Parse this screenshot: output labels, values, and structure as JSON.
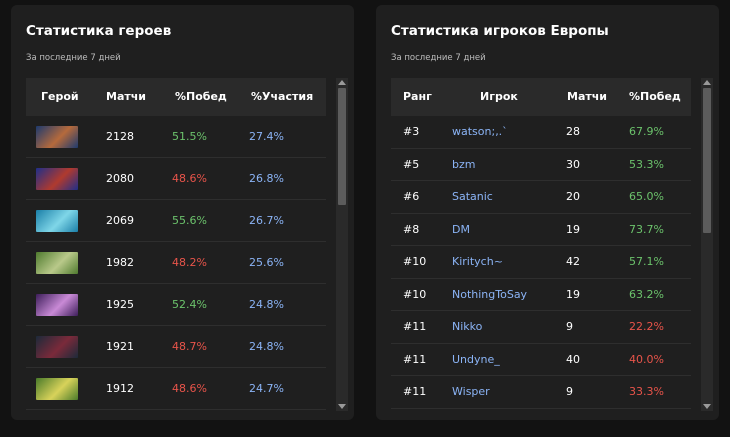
{
  "heroes_panel": {
    "title": "Статистика героев",
    "subtitle": "За последние 7 дней",
    "headers": [
      "Герой",
      "Матчи",
      "%Побед",
      "%Участия"
    ],
    "rows": [
      {
        "matches": "2128",
        "winrate": "51.5%",
        "winrate_status": "good",
        "participation": "27.4%",
        "portrait_colors": [
          "#1d3a6e",
          "#b56a3c"
        ]
      },
      {
        "matches": "2080",
        "winrate": "48.6%",
        "winrate_status": "bad",
        "participation": "26.8%",
        "portrait_colors": [
          "#1f2f8a",
          "#b03a2e"
        ]
      },
      {
        "matches": "2069",
        "winrate": "55.6%",
        "winrate_status": "good",
        "participation": "26.7%",
        "portrait_colors": [
          "#1a7fa8",
          "#7fd6e8"
        ]
      },
      {
        "matches": "1982",
        "winrate": "48.2%",
        "winrate_status": "bad",
        "participation": "25.6%",
        "portrait_colors": [
          "#4f7a2e",
          "#b9c98a"
        ]
      },
      {
        "matches": "1925",
        "winrate": "52.4%",
        "winrate_status": "good",
        "participation": "24.8%",
        "portrait_colors": [
          "#3d1e5a",
          "#c98ad6"
        ]
      },
      {
        "matches": "1921",
        "winrate": "48.7%",
        "winrate_status": "bad",
        "participation": "24.8%",
        "portrait_colors": [
          "#1c2a3a",
          "#7a2a3a"
        ]
      },
      {
        "matches": "1912",
        "winrate": "48.6%",
        "winrate_status": "bad",
        "participation": "24.7%",
        "portrait_colors": [
          "#4a7a2a",
          "#d8d25a"
        ]
      }
    ]
  },
  "players_panel": {
    "title": "Статистика игроков Европы",
    "subtitle": "За последние 7 дней",
    "headers": [
      "Ранг",
      "Игрок",
      "Матчи",
      "%Побед"
    ],
    "rows": [
      {
        "rank": "#3",
        "player": "watson;,.`",
        "matches": "28",
        "winrate": "67.9%",
        "winrate_status": "good"
      },
      {
        "rank": "#5",
        "player": "bzm",
        "matches": "30",
        "winrate": "53.3%",
        "winrate_status": "good"
      },
      {
        "rank": "#6",
        "player": "Satanic",
        "matches": "20",
        "winrate": "65.0%",
        "winrate_status": "good"
      },
      {
        "rank": "#8",
        "player": "DM",
        "matches": "19",
        "winrate": "73.7%",
        "winrate_status": "good"
      },
      {
        "rank": "#10",
        "player": "Kiritych~",
        "matches": "42",
        "winrate": "57.1%",
        "winrate_status": "good"
      },
      {
        "rank": "#10",
        "player": "NothingToSay",
        "matches": "19",
        "winrate": "63.2%",
        "winrate_status": "good"
      },
      {
        "rank": "#11",
        "player": "Nikko",
        "matches": "9",
        "winrate": "22.2%",
        "winrate_status": "bad"
      },
      {
        "rank": "#11",
        "player": "Undyne_",
        "matches": "40",
        "winrate": "40.0%",
        "winrate_status": "bad"
      },
      {
        "rank": "#11",
        "player": "Wisper",
        "matches": "9",
        "winrate": "33.3%",
        "winrate_status": "bad"
      }
    ]
  },
  "colors": {
    "good": "#6cc36c",
    "bad": "#e8544a",
    "link": "#8bb4f6",
    "panel_bg": "#1f1f1f",
    "header_bg": "#2a2a2a"
  },
  "icons": {
    "scroll_up": "triangle-up-icon",
    "scroll_down": "triangle-down-icon"
  }
}
